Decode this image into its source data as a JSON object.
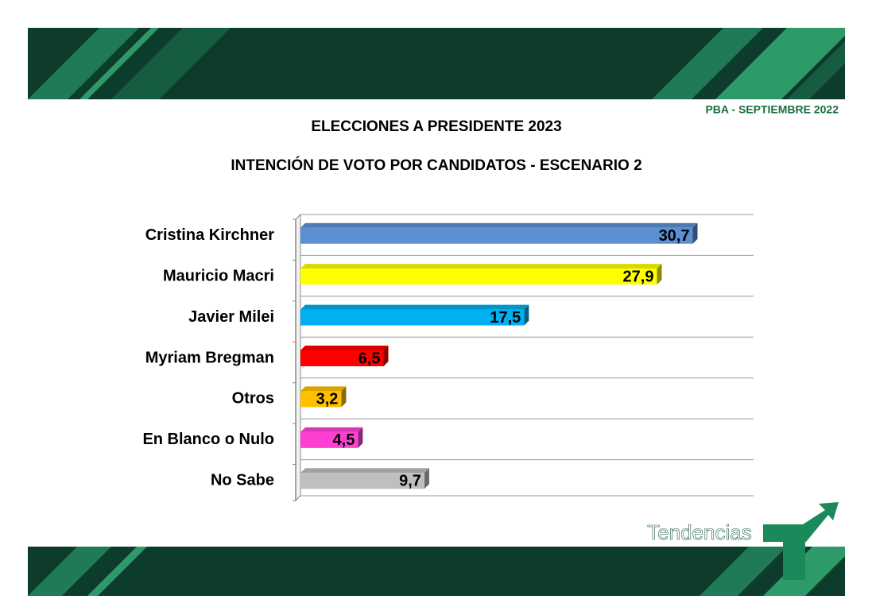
{
  "header": {
    "tag": "PBA - SEPTIEMBRE 2022"
  },
  "logo": "Tendencias",
  "chart_data": {
    "type": "bar",
    "orientation": "horizontal",
    "title": "ELECCIONES A PRESIDENTE 2023",
    "subtitle": "INTENCIÓN DE VOTO POR CANDIDATOS - ESCENARIO 2",
    "categories": [
      "Cristina Kirchner",
      "Mauricio Macri",
      "Javier Milei",
      "Myriam Bregman",
      "Otros",
      "En Blanco o Nulo",
      "No Sabe"
    ],
    "values": [
      30.7,
      27.9,
      17.5,
      6.5,
      3.2,
      4.5,
      9.7
    ],
    "value_labels": [
      "30,7",
      "27,9",
      "17,5",
      "6,5",
      "3,2",
      "4,5",
      "9,7"
    ],
    "colors": [
      "#5b8fd0",
      "#ffff00",
      "#00b0f0",
      "#ff0000",
      "#ffc000",
      "#ff3fd2",
      "#bfbfbf"
    ],
    "grid": true
  }
}
